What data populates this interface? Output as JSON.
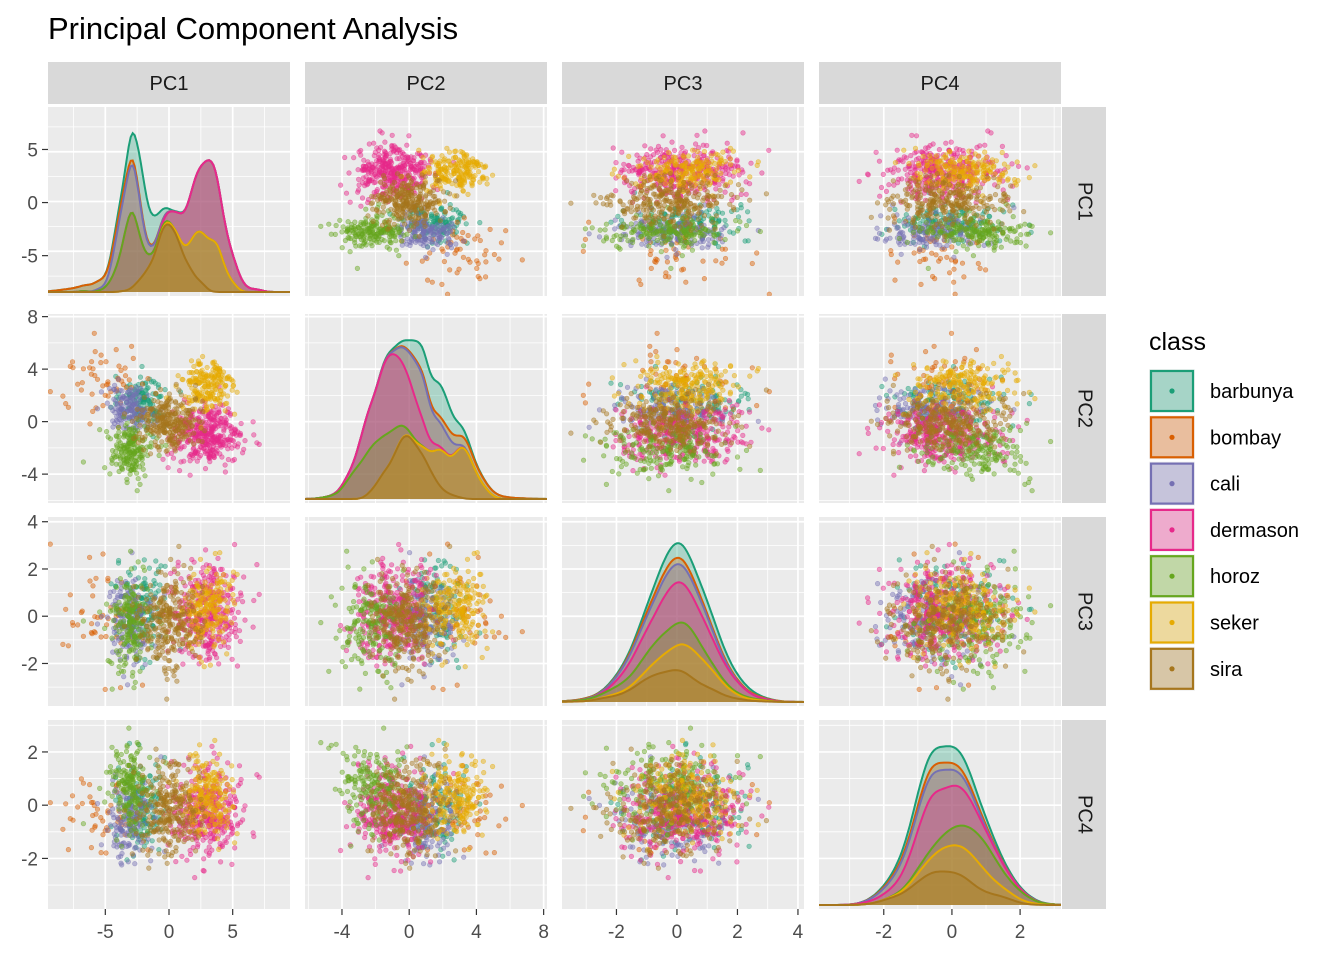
{
  "chart_data": {
    "type": "scatter",
    "subtype": "pairs-matrix",
    "title": "Principal Component Analysis",
    "variables": [
      "PC1",
      "PC2",
      "PC3",
      "PC4"
    ],
    "legend": {
      "title": "class",
      "position": "right",
      "entries": [
        "barbunya",
        "bombay",
        "cali",
        "dermason",
        "horoz",
        "seker",
        "sira"
      ]
    },
    "colors": {
      "barbunya": "#1b9e77",
      "bombay": "#d95f02",
      "cali": "#7570b3",
      "dermason": "#e7298a",
      "horoz": "#66a61e",
      "seker": "#e6ab02",
      "sira": "#a6761d"
    },
    "panel_background": "#ebebeb",
    "strip_background": "#d9d9d9",
    "grid": true,
    "axes": {
      "PC1": {
        "range": [
          -9.5,
          9.5
        ],
        "ticks": [
          -5,
          0,
          5
        ],
        "tick_labels": [
          "-5",
          "0",
          "5"
        ],
        "density_ylim": [
          -8.8,
          9.0
        ]
      },
      "PC2": {
        "range": [
          -6.2,
          8.2
        ],
        "ticks": [
          -4,
          0,
          4,
          8
        ],
        "tick_labels": [
          "-4",
          "0",
          "4",
          "8"
        ]
      },
      "PC3": {
        "range": [
          -3.8,
          4.2
        ],
        "ticks": [
          -2,
          0,
          2,
          4
        ],
        "tick_labels": [
          "-2",
          "0",
          "2",
          "4"
        ]
      },
      "PC4": {
        "range": [
          -3.9,
          3.2
        ],
        "ticks": [
          -2,
          0,
          2
        ],
        "tick_labels": [
          "-2",
          "0",
          "2"
        ]
      }
    },
    "class_summary": {
      "barbunya": {
        "PC1": -2.0,
        "PC2": 1.5,
        "PC3": 0.3,
        "PC4": 0.0,
        "sd": [
          0.9,
          1.0,
          1.0,
          0.9
        ],
        "n": 130
      },
      "bombay": {
        "PC1": -5.0,
        "PC2": 2.8,
        "PC3": 0.0,
        "PC4": -0.2,
        "sd": [
          1.8,
          1.5,
          1.2,
          0.9
        ],
        "n": 55
      },
      "cali": {
        "PC1": -3.0,
        "PC2": 1.0,
        "PC3": -0.2,
        "PC4": -0.6,
        "sd": [
          0.9,
          0.8,
          1.0,
          0.8
        ],
        "n": 150
      },
      "dermason": {
        "PC1": 3.0,
        "PC2": -1.0,
        "PC3": 0.2,
        "PC4": -0.3,
        "sd": [
          1.4,
          1.1,
          1.0,
          0.8
        ],
        "n": 350
      },
      "horoz": {
        "PC1": -3.0,
        "PC2": -2.2,
        "PC3": -0.4,
        "PC4": 0.7,
        "sd": [
          0.9,
          1.0,
          1.0,
          0.8
        ],
        "n": 190
      },
      "seker": {
        "PC1": 3.0,
        "PC2": 2.8,
        "PC3": 0.3,
        "PC4": 0.2,
        "sd": [
          1.0,
          1.0,
          0.9,
          0.8
        ],
        "n": 200
      },
      "sira": {
        "PC1": 0.0,
        "PC2": 0.0,
        "PC3": -0.2,
        "PC4": -0.2,
        "sd": [
          1.1,
          1.0,
          1.0,
          0.9
        ],
        "n": 260
      }
    }
  }
}
